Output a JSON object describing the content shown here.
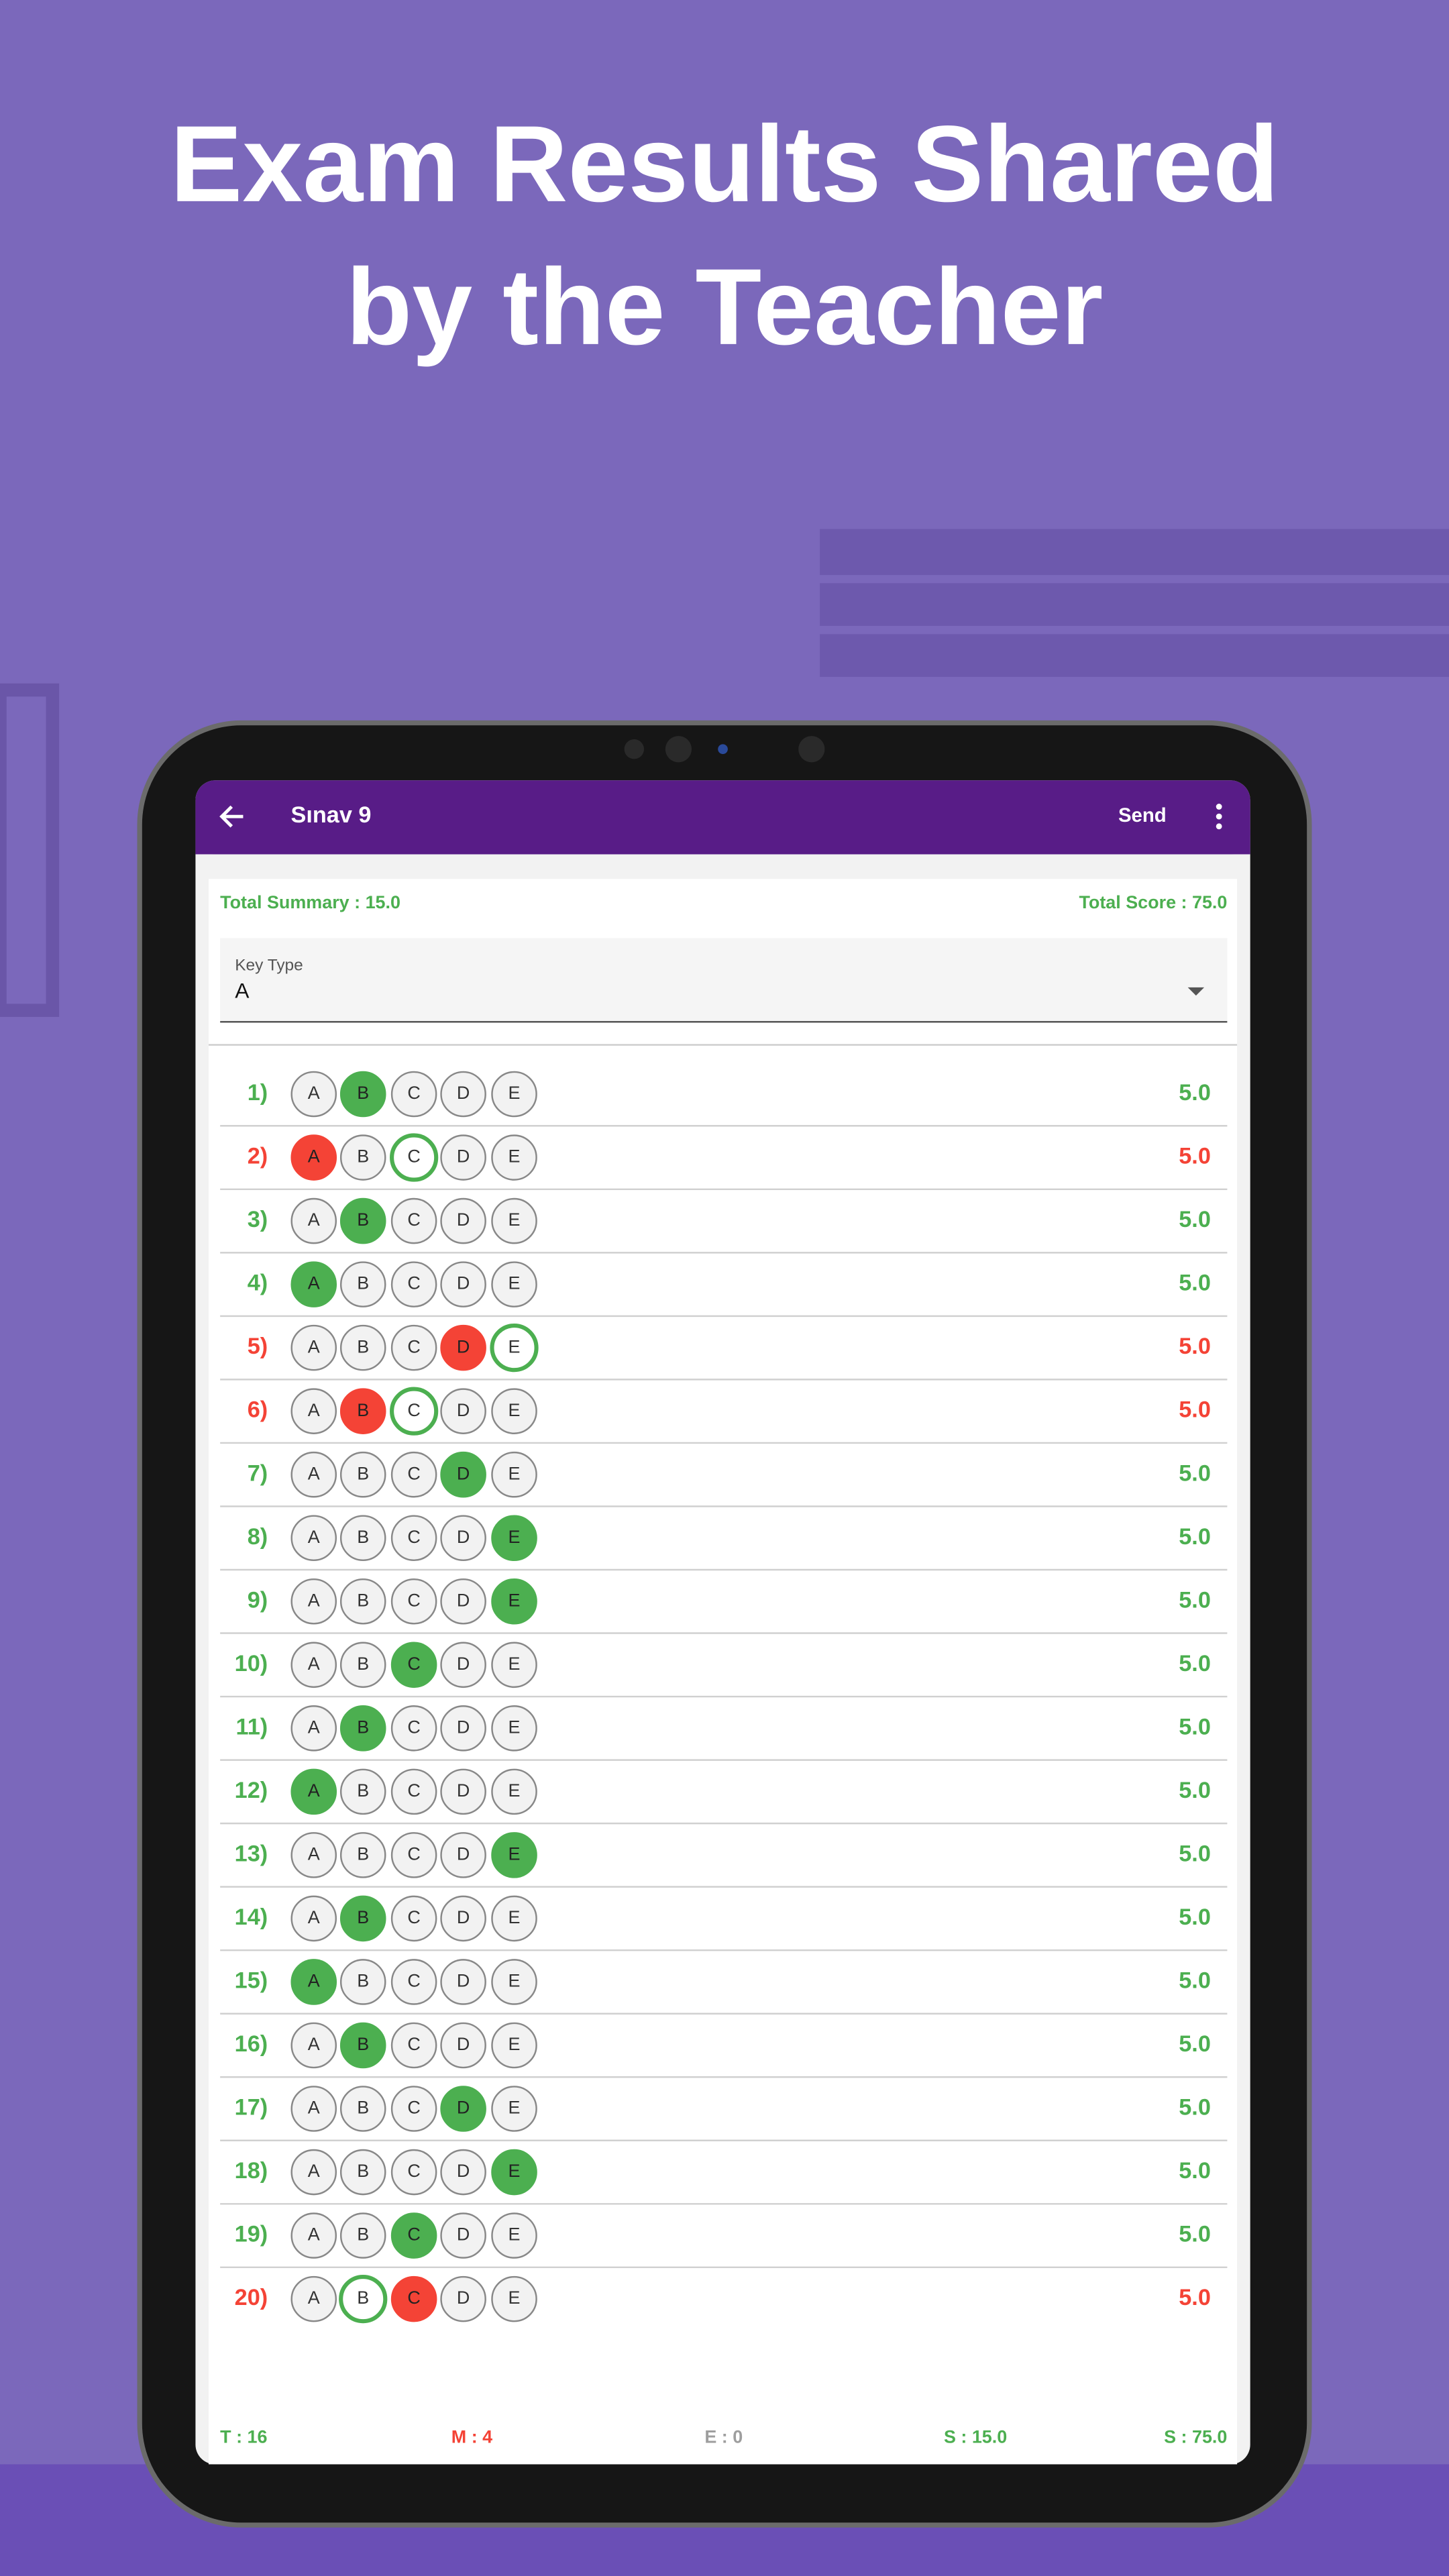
{
  "header": {
    "title_lines": [
      "Exam Results Shared",
      "by the Teacher"
    ]
  },
  "app_bar": {
    "title": "Sınav 9",
    "action": "Send"
  },
  "summary": {
    "left": "Total Summary : 15.0",
    "right": "Total Score : 75.0"
  },
  "key_type": {
    "label": "Key Type",
    "value": "A"
  },
  "options": [
    "A",
    "B",
    "C",
    "D",
    "E"
  ],
  "questions": [
    {
      "label": "1)",
      "marked": "B",
      "correct": "B",
      "score": "5.0"
    },
    {
      "label": "2)",
      "marked": "A",
      "correct": "C",
      "score": "5.0"
    },
    {
      "label": "3)",
      "marked": "B",
      "correct": "B",
      "score": "5.0"
    },
    {
      "label": "4)",
      "marked": "A",
      "correct": "A",
      "score": "5.0"
    },
    {
      "label": "5)",
      "marked": "D",
      "correct": "E",
      "score": "5.0"
    },
    {
      "label": "6)",
      "marked": "B",
      "correct": "C",
      "score": "5.0"
    },
    {
      "label": "7)",
      "marked": "D",
      "correct": "D",
      "score": "5.0"
    },
    {
      "label": "8)",
      "marked": "E",
      "correct": "E",
      "score": "5.0"
    },
    {
      "label": "9)",
      "marked": "E",
      "correct": "E",
      "score": "5.0"
    },
    {
      "label": "10)",
      "marked": "C",
      "correct": "C",
      "score": "5.0"
    },
    {
      "label": "11)",
      "marked": "B",
      "correct": "B",
      "score": "5.0"
    },
    {
      "label": "12)",
      "marked": "A",
      "correct": "A",
      "score": "5.0"
    },
    {
      "label": "13)",
      "marked": "E",
      "correct": "E",
      "score": "5.0"
    },
    {
      "label": "14)",
      "marked": "B",
      "correct": "B",
      "score": "5.0"
    },
    {
      "label": "15)",
      "marked": "A",
      "correct": "A",
      "score": "5.0"
    },
    {
      "label": "16)",
      "marked": "B",
      "correct": "B",
      "score": "5.0"
    },
    {
      "label": "17)",
      "marked": "D",
      "correct": "D",
      "score": "5.0"
    },
    {
      "label": "18)",
      "marked": "E",
      "correct": "E",
      "score": "5.0"
    },
    {
      "label": "19)",
      "marked": "C",
      "correct": "C",
      "score": "5.0"
    },
    {
      "label": "20)",
      "marked": "C",
      "correct": "B",
      "score": "5.0"
    }
  ],
  "footer": [
    {
      "text": "T : 16",
      "color": "#4caf50"
    },
    {
      "text": "M : 4",
      "color": "#f44336"
    },
    {
      "text": "E : 0",
      "color": "#9e9e9e"
    },
    {
      "text": "S : 15.0",
      "color": "#4caf50"
    },
    {
      "text": "S : 75.0",
      "color": "#4caf50"
    }
  ]
}
